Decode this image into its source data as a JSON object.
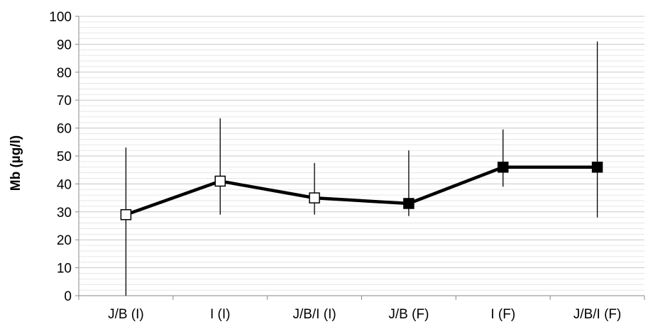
{
  "chart_data": {
    "type": "line",
    "title": "",
    "xlabel": "",
    "ylabel": "Mb (µg/l)",
    "ylim": [
      0,
      100
    ],
    "yticks": [
      0,
      10,
      20,
      30,
      40,
      50,
      60,
      70,
      80,
      90,
      100
    ],
    "grid": true,
    "categories": [
      "J/B (I)",
      "I (I)",
      "J/B/I (I)",
      "J/B (F)",
      "I (F)",
      "J/B/I (F)"
    ],
    "series": [
      {
        "values": [
          29,
          41,
          35,
          33,
          46,
          46
        ],
        "error_low": [
          0,
          29,
          29,
          28.5,
          39,
          28
        ],
        "error_high": [
          53,
          63.5,
          47.5,
          52,
          59.5,
          91
        ],
        "marker_fill": [
          "open",
          "open",
          "open",
          "filled",
          "filled",
          "filled"
        ],
        "color": "#000000"
      }
    ]
  }
}
